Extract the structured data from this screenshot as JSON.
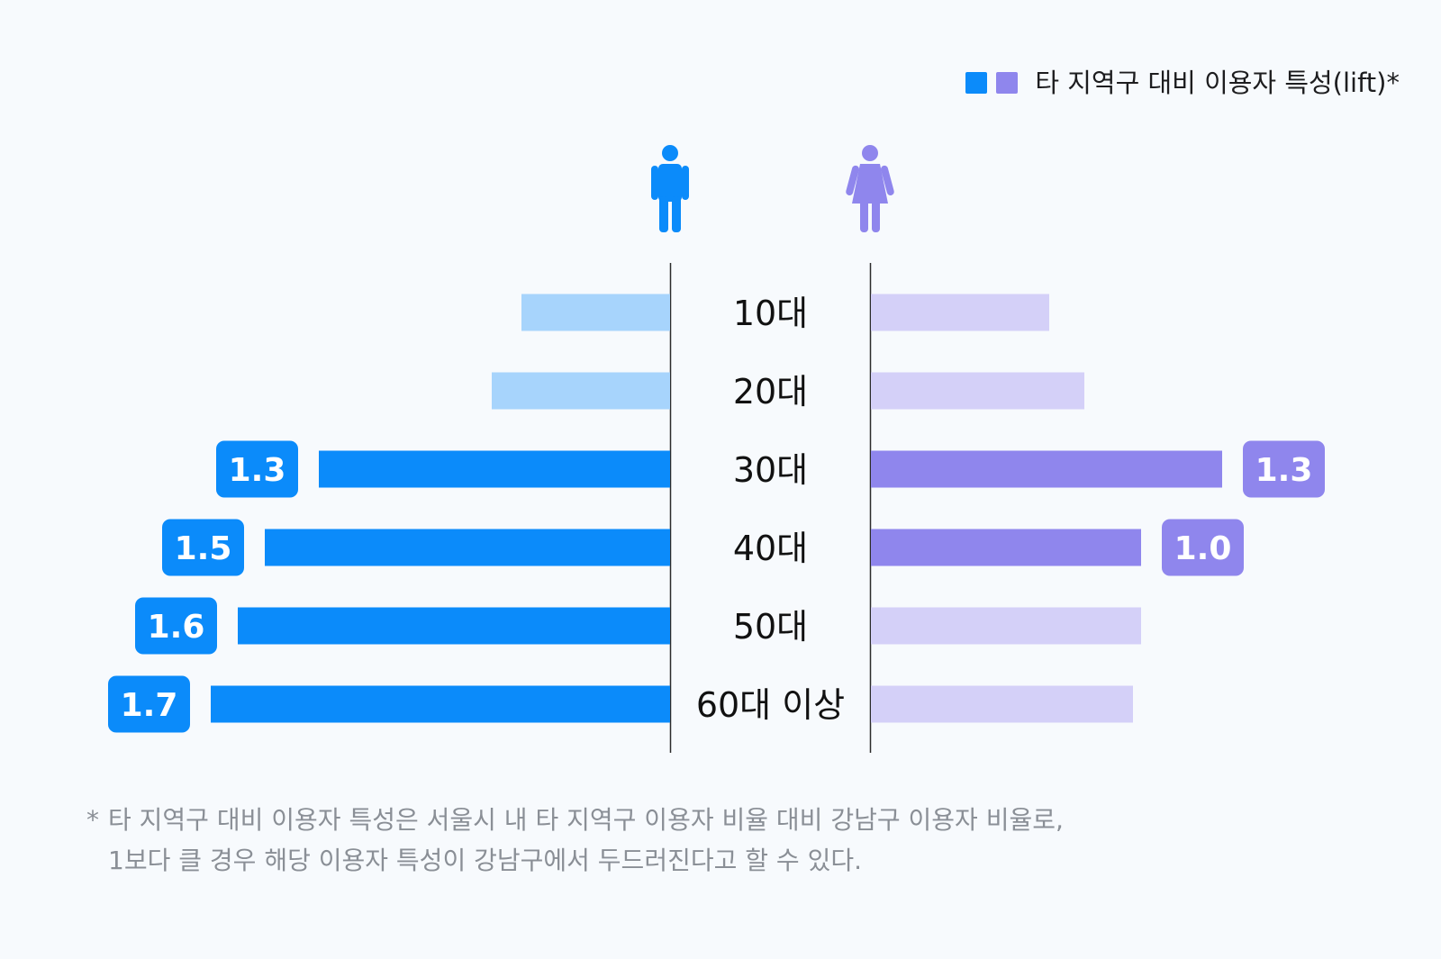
{
  "legend": {
    "label": "타 지역구 대비 이용자 특성(lift)*",
    "colors": [
      "#0b8bfa",
      "#8f86ed"
    ]
  },
  "icons": {
    "male": "male-person-icon",
    "female": "female-person-icon"
  },
  "chart_data": {
    "type": "bar",
    "orientation": "horizontal-butterfly",
    "categories": [
      "10대",
      "20대",
      "30대",
      "40대",
      "50대",
      "60대 이상"
    ],
    "series": [
      {
        "icon": "male-person-icon",
        "side": "left",
        "values": [
          0.55,
          0.66,
          1.3,
          1.5,
          1.6,
          1.7
        ],
        "highlighted": [
          false,
          false,
          true,
          true,
          true,
          true
        ],
        "labels": [
          "",
          "",
          "1.3",
          "1.5",
          "1.6",
          "1.7"
        ],
        "color": "#0b8bfa",
        "muted_color": "#a7d4fc"
      },
      {
        "icon": "female-person-icon",
        "side": "right",
        "values": [
          0.66,
          0.79,
          1.3,
          1.0,
          1.0,
          0.97
        ],
        "highlighted": [
          false,
          false,
          true,
          true,
          false,
          false
        ],
        "labels": [
          "",
          "",
          "1.3",
          "1.0",
          "",
          ""
        ],
        "color": "#8f86ed",
        "muted_color": "#d4d0f8"
      }
    ],
    "grid": false,
    "legend_position": "top-right"
  },
  "footnote": {
    "star": "*",
    "line1": "타 지역구 대비 이용자 특성은 서울시 내 타 지역구 이용자 비율 대비 강남구 이용자 비율로,",
    "line2": "1보다 클 경우 해당 이용자 특성이 강남구에서 두드러진다고 할 수 있다."
  }
}
